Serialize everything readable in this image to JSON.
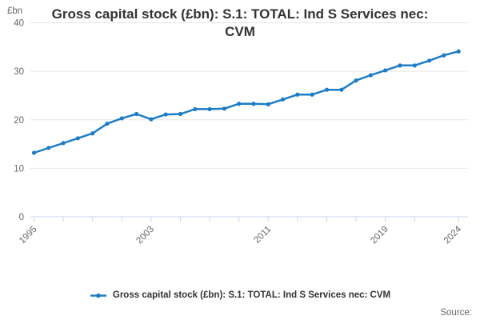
{
  "title": "Gross capital stock (£bn): S.1: TOTAL: Ind S Services nec: CVM",
  "y_unit_label": "£bn",
  "legend": {
    "label": "Gross capital stock (£bn): S.1: TOTAL: Ind S Services nec: CVM"
  },
  "source_label": "Source:",
  "colors": {
    "line": "#1e7cc3",
    "axis": "#ccd6eb",
    "grid": "#e6e6e6",
    "tick_label": "#666666",
    "title": "#333333"
  },
  "chart_data": {
    "type": "line",
    "title": "Gross capital stock (£bn): S.1: TOTAL: Ind S Services nec: CVM",
    "xlabel": "",
    "ylabel": "£bn",
    "ylim": [
      0,
      40
    ],
    "yticks": [
      0,
      10,
      20,
      30,
      40
    ],
    "grid": "horizontal",
    "legend_position": "bottom",
    "x_minor_tick_years": [
      1995,
      1997,
      1999,
      2001,
      2003,
      2005,
      2007,
      2009,
      2011,
      2013,
      2015,
      2017,
      2019,
      2021,
      2024
    ],
    "xtick_labels": [
      1995,
      2003,
      2011,
      2019,
      2024
    ],
    "x": [
      1995,
      1996,
      1997,
      1998,
      1999,
      2000,
      2001,
      2002,
      2003,
      2004,
      2005,
      2006,
      2007,
      2008,
      2009,
      2010,
      2011,
      2012,
      2013,
      2014,
      2015,
      2016,
      2017,
      2018,
      2019,
      2020,
      2021,
      2022,
      2023,
      2024
    ],
    "series": [
      {
        "name": "Gross capital stock (£bn): S.1: TOTAL: Ind S Services nec: CVM",
        "values": [
          13.2,
          14.2,
          15.2,
          16.2,
          17.2,
          19.2,
          20.3,
          21.2,
          20.1,
          21.1,
          21.2,
          22.2,
          22.2,
          22.3,
          23.3,
          23.3,
          23.2,
          24.2,
          25.2,
          25.2,
          26.2,
          26.2,
          28.1,
          29.2,
          30.2,
          31.2,
          31.2,
          32.2,
          33.3,
          34.1
        ]
      }
    ]
  }
}
